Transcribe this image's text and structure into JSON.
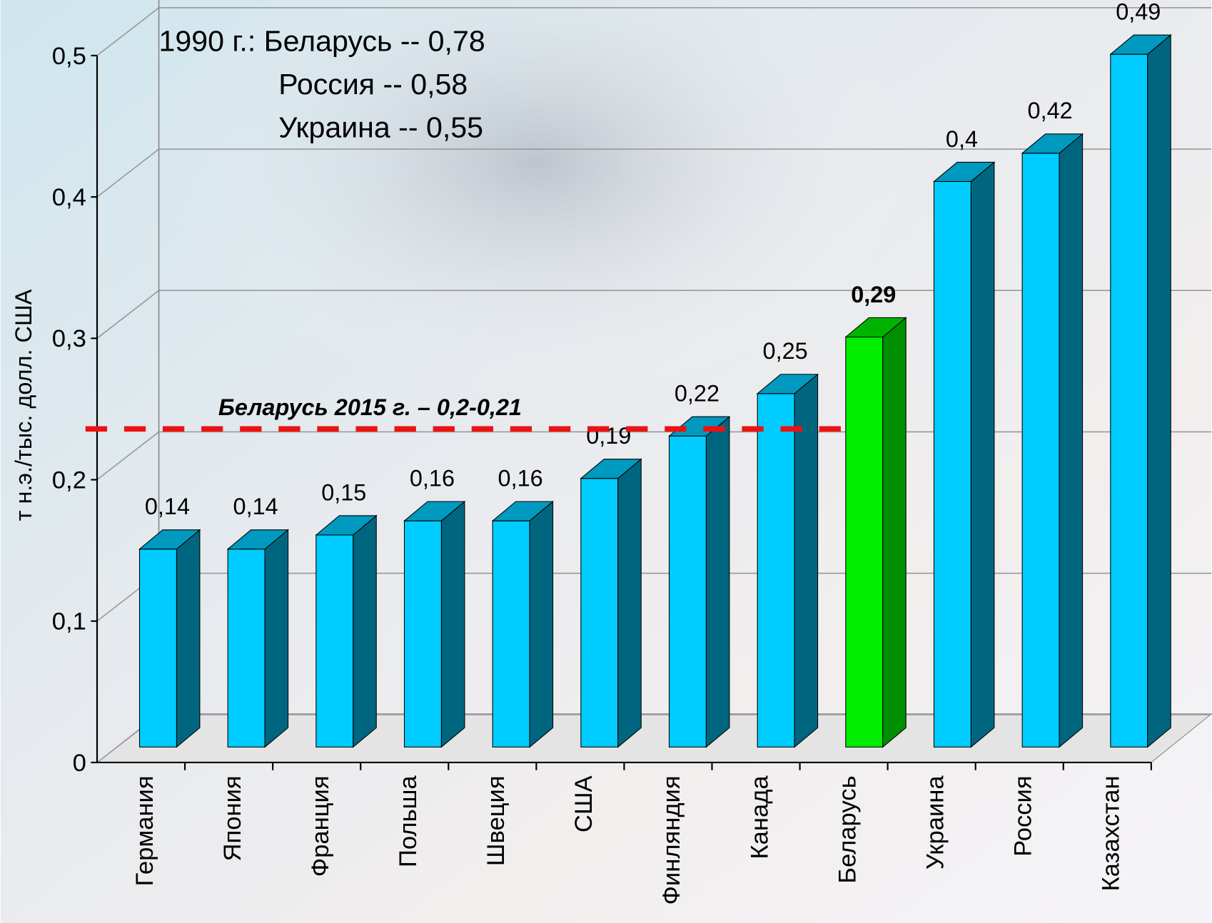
{
  "chart_data": {
    "type": "bar3d",
    "y_label": "т н.э./тыс. долл. США",
    "annotation_lines": [
      "1990 г.: Беларусь -- 0,78",
      "Россия -- 0,58",
      "Украина -- 0,55"
    ],
    "reference_line": {
      "value": 0.225,
      "label": "Беларусь 2015 г. – 0,2-0,21",
      "color": "#ee1111"
    },
    "categories": [
      "Германия",
      "Япония",
      "Франция",
      "Польша",
      "Швеция",
      "США",
      "Финляндия",
      "Канада",
      "Беларусь",
      "Украина",
      "Россия",
      "Казахстан"
    ],
    "values": [
      0.14,
      0.14,
      0.15,
      0.16,
      0.16,
      0.19,
      0.22,
      0.25,
      0.29,
      0.4,
      0.42,
      0.49
    ],
    "value_labels": [
      "0,14",
      "0,14",
      "0,15",
      "0,16",
      "0,16",
      "0,19",
      "0,22",
      "0,25",
      "0,29",
      "0,4",
      "0,42",
      "0,49"
    ],
    "colors": [
      "#00ccff",
      "#00ccff",
      "#00ccff",
      "#00ccff",
      "#00ccff",
      "#00ccff",
      "#00ccff",
      "#00ccff",
      "#00ee00",
      "#00ccff",
      "#00ccff",
      "#00ccff"
    ],
    "highlight_color": "#00ee00",
    "ylim": [
      0,
      0.5
    ],
    "yticks": [
      0,
      {
        "value": 0.1,
        "label": "0,1"
      },
      {
        "value": 0.2,
        "label": "0,2"
      },
      {
        "value": 0.3,
        "label": "0,3"
      },
      {
        "value": 0.4,
        "label": "0,4"
      },
      {
        "value": 0.5,
        "label": "0,5"
      }
    ],
    "grid": true
  }
}
